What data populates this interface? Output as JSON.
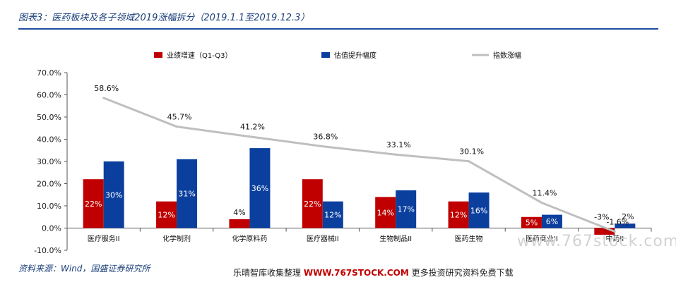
{
  "title": "图表3：医药板块及各子领域2019涨幅拆分（2019.1.1至2019.12.3）",
  "source": "资料来源：Wind，国盛证券研究所",
  "footer": {
    "prefix": "乐晴智库收集整理 ",
    "url": "WWW.767STOCK.COM",
    "suffix": " 更多投资研究资料免费下载"
  },
  "watermark": "www.767stock.com",
  "colors": {
    "bar1": "#c00000",
    "bar2": "#0b3f9e",
    "line": "#bfbfbf",
    "title": "#1a3e7a",
    "rule": "#1f4e9e"
  },
  "chart_data": {
    "type": "bar",
    "categories": [
      "医疗服务II",
      "化学制剂",
      "化学原料药",
      "医疗器械II",
      "生物制品II",
      "医药生物",
      "医药商业II",
      "中药II"
    ],
    "series": [
      {
        "name": "业绩增速（Q1-Q3）",
        "type": "bar",
        "values": [
          22,
          12,
          4,
          22,
          14,
          12,
          5,
          -3
        ],
        "labels": [
          "22%",
          "12%",
          "4%",
          "22%",
          "14%",
          "12%",
          "5%",
          "-3%"
        ]
      },
      {
        "name": "估值提升幅度",
        "type": "bar",
        "values": [
          30,
          31,
          36,
          12,
          17,
          16,
          6,
          2
        ],
        "labels": [
          "30%",
          "31%",
          "36%",
          "12%",
          "17%",
          "16%",
          "6%",
          "2%"
        ]
      },
      {
        "name": "指数涨幅",
        "type": "line",
        "values": [
          58.6,
          45.7,
          41.2,
          36.8,
          33.1,
          30.1,
          11.4,
          -1.6
        ],
        "labels": [
          "58.6%",
          "45.7%",
          "41.2%",
          "36.8%",
          "33.1%",
          "30.1%",
          "11.4%",
          "-1.6%"
        ]
      }
    ],
    "ylim": [
      -10,
      70
    ],
    "yticks": [
      -10,
      0,
      10,
      20,
      30,
      40,
      50,
      60,
      70
    ],
    "ytick_labels": [
      "-10.0%",
      "0.0%",
      "10.0%",
      "20.0%",
      "30.0%",
      "40.0%",
      "50.0%",
      "60.0%",
      "70.0%"
    ],
    "grid": false,
    "legend_position": "top"
  }
}
